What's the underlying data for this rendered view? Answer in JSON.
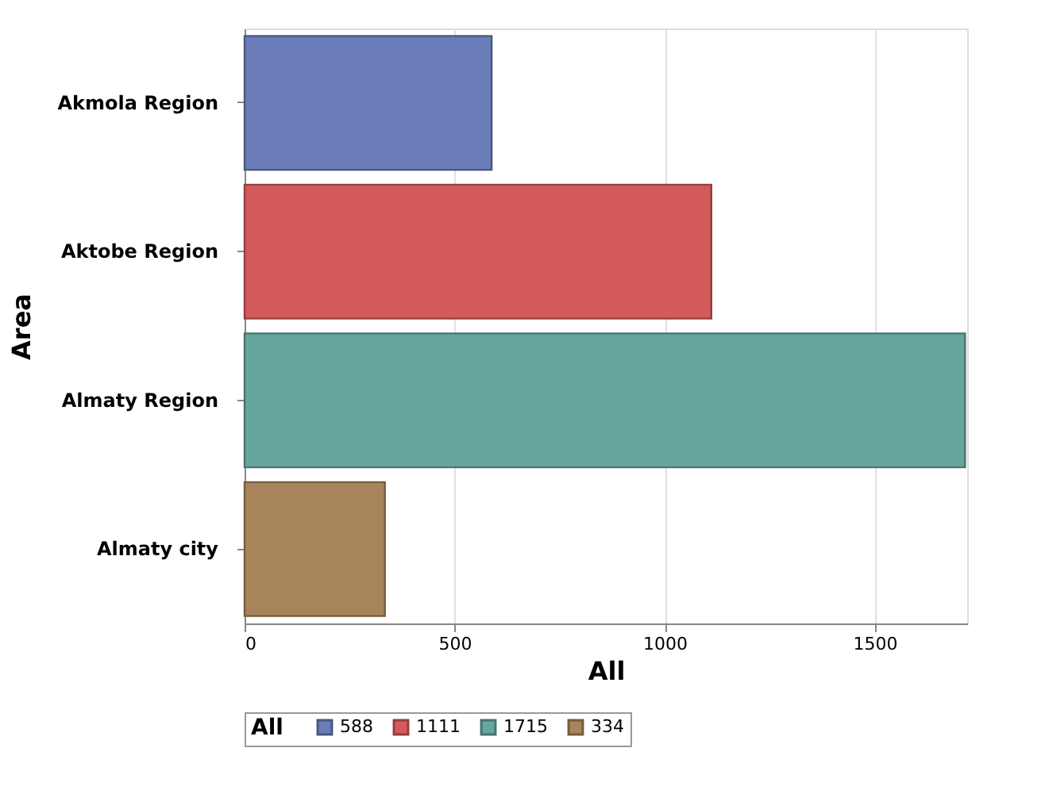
{
  "chart_data": {
    "type": "bar",
    "orientation": "horizontal",
    "xlabel": "All",
    "ylabel": "Area",
    "legend_title": "All",
    "legend": "bottom",
    "grid": "x",
    "categories": [
      "Akmola Region",
      "Aktobe Region",
      "Almaty Region",
      "Almaty city"
    ],
    "series": [
      {
        "name": "588",
        "color": "#6b7db8",
        "values": [
          588,
          null,
          null,
          null
        ]
      },
      {
        "name": "1111",
        "color": "#d35a5a",
        "values": [
          null,
          1111,
          null,
          null
        ]
      },
      {
        "name": "1715",
        "color": "#66a69f",
        "values": [
          null,
          null,
          1715,
          null
        ]
      },
      {
        "name": "334",
        "color": "#a8845a",
        "values": [
          null,
          null,
          null,
          334
        ]
      }
    ],
    "xlim": [
      0,
      1720
    ],
    "xticks": [
      0,
      500,
      1000,
      1500
    ]
  }
}
